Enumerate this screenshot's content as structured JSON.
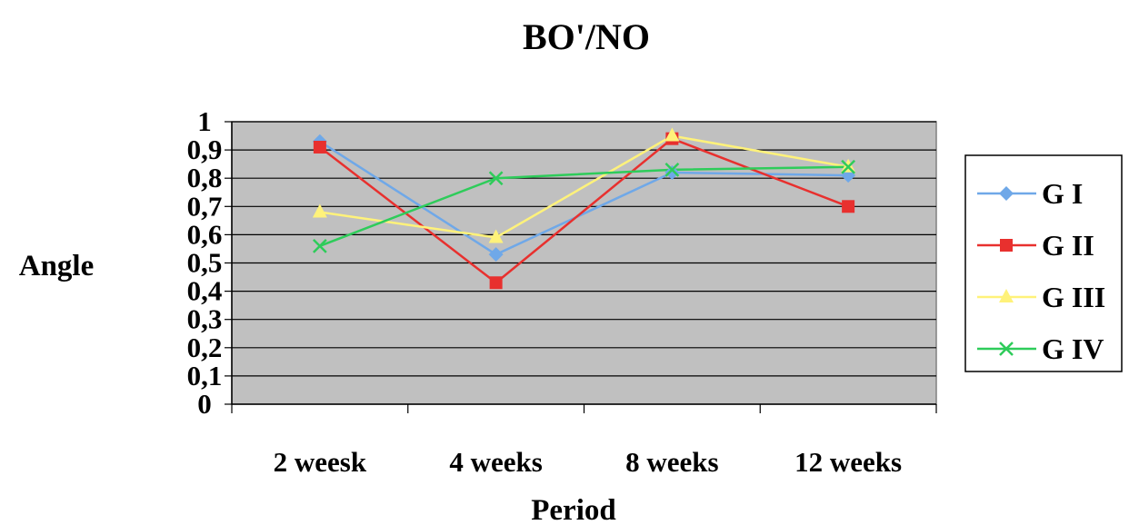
{
  "chart_data": {
    "type": "line",
    "title": "BO'/NO",
    "xlabel": "Period",
    "ylabel": "Angle",
    "categories": [
      "2 weesk",
      "4 weeks",
      "8 weeks",
      "12 weeks"
    ],
    "y_ticks": [
      "0",
      "0,1",
      "0,2",
      "0,3",
      "0,4",
      "0,5",
      "0,6",
      "0,7",
      "0,8",
      "0,9",
      "1"
    ],
    "ylim": [
      0,
      1
    ],
    "grid": true,
    "plot_background": "#c0c0c0",
    "legend_position": "right",
    "series": [
      {
        "name": "G I",
        "values": [
          0.93,
          0.53,
          0.82,
          0.81
        ],
        "color": "#6fa8e8",
        "marker": "diamond"
      },
      {
        "name": "G II",
        "values": [
          0.91,
          0.43,
          0.94,
          0.7
        ],
        "color": "#e8302e",
        "marker": "square"
      },
      {
        "name": "G III",
        "values": [
          0.68,
          0.59,
          0.95,
          0.84
        ],
        "color": "#fff27a",
        "marker": "triangle"
      },
      {
        "name": "G IV",
        "values": [
          0.56,
          0.8,
          0.83,
          0.84
        ],
        "color": "#2ecc5a",
        "marker": "x"
      }
    ]
  }
}
